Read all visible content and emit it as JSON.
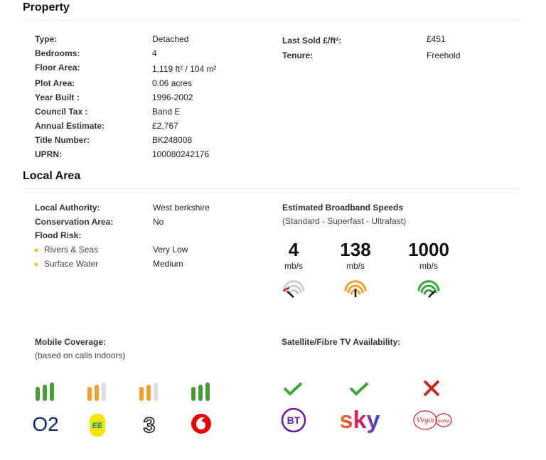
{
  "property": {
    "title": "Property",
    "rows": [
      {
        "label": "Type:",
        "value": "Detached"
      },
      {
        "label": "Bedrooms:",
        "value": "4"
      },
      {
        "label": "Floor Area:",
        "value": "1,119 ft² / 104 m²"
      },
      {
        "label": "Plot Area:",
        "value": "0.06 acres"
      },
      {
        "label": "Year Built :",
        "value": "1996-2002"
      },
      {
        "label": "Council Tax :",
        "value": "Band E"
      },
      {
        "label": "Annual Estimate:",
        "value": "£2,767"
      },
      {
        "label": "Title Number:",
        "value": "BK248008"
      },
      {
        "label": "UPRN:",
        "value": "100080242176"
      }
    ],
    "right_rows": [
      {
        "label": "Last Sold £/ft²:",
        "value": "£451"
      },
      {
        "label": "Tenure:",
        "value": "Freehold"
      }
    ]
  },
  "local_area": {
    "title": "Local Area",
    "rows": [
      {
        "label": "Local Authority:",
        "value": "West berkshire"
      },
      {
        "label": "Conservation Area:",
        "value": "No"
      },
      {
        "label": "Flood Risk:"
      }
    ],
    "flood_rows": [
      {
        "label": "Rivers & Seas",
        "value": "Very Low"
      },
      {
        "label": "Surface Water",
        "value": "Medium"
      }
    ]
  },
  "broadband": {
    "title": "Estimated Broadband Speeds",
    "subtitle": "(Standard - Superfast - Ultrafast)",
    "speeds": [
      {
        "value": 4,
        "unit": "mb/s",
        "color": "#c0392b"
      },
      {
        "value": 138,
        "unit": "mb/s",
        "color": "#f0a030"
      },
      {
        "value": 1000,
        "unit": "mb/s",
        "color": "#3aa53a"
      }
    ]
  },
  "mobile": {
    "title": "Mobile Coverage:",
    "subtitle": "(based on calls indoors)",
    "operators": [
      {
        "logo": "O2",
        "signal": 3,
        "color": "#4a9a3a"
      },
      {
        "logo": "EE",
        "signal": 2,
        "color": "#f0a030"
      },
      {
        "logo": "3",
        "signal": 2,
        "color": "#f0a030"
      },
      {
        "signal": 3,
        "color": "#4a9a3a"
      }
    ]
  },
  "tv": {
    "title": "Satellite/Fibre TV Availability:",
    "providers": [
      {
        "logo": "BT",
        "available": true
      },
      {
        "logo": "sky",
        "available": true
      },
      {
        "logo": "Virgin",
        "sub": "media",
        "available": false
      }
    ]
  }
}
